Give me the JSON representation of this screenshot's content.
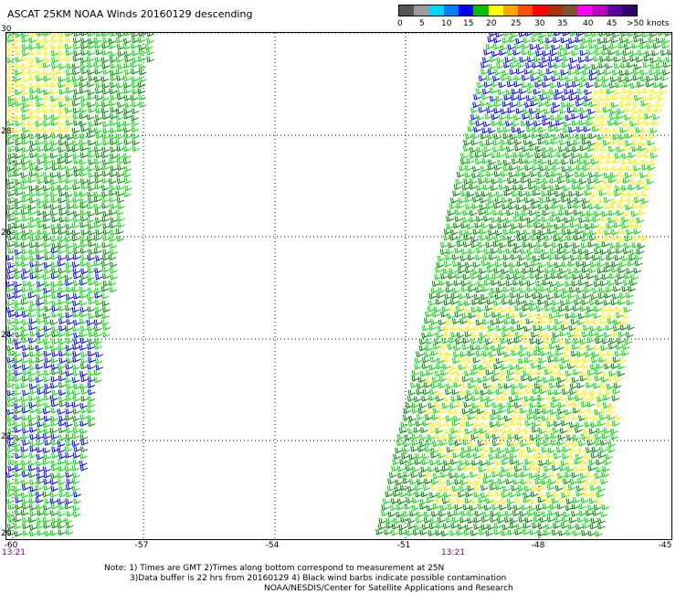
{
  "title": "ASCAT 25KM NOAA Winds 20160129 descending",
  "legend": {
    "labels": [
      "0",
      "5",
      "10",
      "15",
      "20",
      "25",
      "30",
      "35",
      "40",
      "45",
      ">50 knots"
    ],
    "colors": [
      "#555555",
      "#9b9b9b",
      "#00d4ff",
      "#0080ff",
      "#0000ff",
      "#00c000",
      "#ffff00",
      "#ffa500",
      "#ff5000",
      "#ff0000",
      "#b03000",
      "#805030",
      "#ff00ff",
      "#c000c0",
      "#6000a0",
      "#300070"
    ]
  },
  "axes": {
    "lat_ticks": [
      "30",
      "28",
      "26",
      "24",
      "22",
      "20"
    ],
    "lon_ticks": [
      "-60",
      "-57",
      "-54",
      "-51",
      "-48",
      "-45"
    ],
    "lat_range": [
      20,
      30
    ],
    "lon_range": [
      -60,
      -45
    ]
  },
  "pass_times": [
    "13:21",
    "13:21"
  ],
  "barb_colors": {
    "lt10": "#0000ff",
    "10to15": "#00dd00",
    "15to20": "#008800",
    "20to25": "#ffee00",
    "25to30": "#ff9900",
    "contaminated": "#000000"
  },
  "notes": [
    "Note: 1) Times are GMT 2)Times along bottom correspond to measurement at 25N",
    "3)Data buffer is 22 hrs from 20160129 4) Black wind barbs indicate possible contamination",
    "NOAA/NESDIS/Center for Satellite Applications and Research"
  ]
}
